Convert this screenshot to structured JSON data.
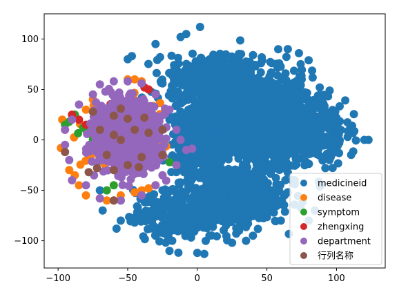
{
  "chart_data": {
    "type": "scatter",
    "title": "",
    "xlabel": "",
    "ylabel": "",
    "xlim": [
      -110,
      135
    ],
    "ylim": [
      -127,
      125
    ],
    "xticks": [
      -100,
      -50,
      0,
      50,
      100
    ],
    "yticks": [
      -100,
      -50,
      0,
      50,
      100
    ],
    "xtick_labels": [
      "−100",
      "−50",
      "0",
      "50",
      "100"
    ],
    "ytick_labels": [
      "−100",
      "−50",
      "0",
      "50",
      "100"
    ],
    "grid": false,
    "legend_position": "lower-right",
    "series": [
      {
        "name": "medicineid",
        "color": "#1f77b4",
        "clusters": [
          {
            "cx": 40,
            "cy": 20,
            "sx": 35,
            "sy": 40,
            "n": 1400
          },
          {
            "cx": 10,
            "cy": 60,
            "sx": 25,
            "sy": 20,
            "n": 400
          },
          {
            "cx": 25,
            "cy": -55,
            "sx": 30,
            "sy": 25,
            "n": 450
          },
          {
            "cx": -15,
            "cy": -75,
            "sx": 25,
            "sy": 20,
            "n": 250
          },
          {
            "cx": 80,
            "cy": 10,
            "sx": 22,
            "sy": 30,
            "n": 260
          },
          {
            "cx": 0,
            "cy": 0,
            "sx": 15,
            "sy": 30,
            "n": 300
          }
        ],
        "points": [
          [
            2,
            112
          ],
          [
            -8,
            105
          ],
          [
            -12,
            102
          ],
          [
            -30,
            95
          ],
          [
            -47,
            83
          ],
          [
            -50,
            80
          ],
          [
            65,
            90
          ],
          [
            73,
            86
          ],
          [
            80,
            79
          ],
          [
            -25,
            56
          ],
          [
            -70,
            -50
          ],
          [
            -55,
            -60
          ],
          [
            -68,
            -70
          ],
          [
            -55,
            -80
          ],
          [
            -58,
            -88
          ],
          [
            -45,
            -82
          ],
          [
            -40,
            -75
          ],
          [
            -20,
            -110
          ],
          [
            0,
            -112
          ],
          [
            5,
            -113
          ],
          [
            -30,
            -95
          ],
          [
            -18,
            -100
          ],
          [
            25,
            -102
          ],
          [
            30,
            -90
          ],
          [
            100,
            0
          ],
          [
            108,
            3
          ],
          [
            120,
            0
          ],
          [
            123,
            0
          ],
          [
            110,
            12
          ],
          [
            100,
            22
          ],
          [
            95,
            -20
          ],
          [
            92,
            -28
          ],
          [
            88,
            23
          ],
          [
            85,
            36
          ],
          [
            88,
            52
          ],
          [
            75,
            60
          ],
          [
            60,
            -20
          ],
          [
            70,
            -40
          ],
          [
            60,
            -60
          ],
          [
            55,
            -72
          ],
          [
            48,
            -73
          ],
          [
            80,
            -80
          ],
          [
            40,
            -95
          ],
          [
            35,
            -100
          ],
          [
            60,
            -80
          ],
          [
            -10,
            -20
          ],
          [
            -20,
            20
          ],
          [
            -25,
            -50
          ]
        ]
      },
      {
        "name": "disease",
        "color": "#ff7f0e",
        "clusters": [
          {
            "cx": -55,
            "cy": 5,
            "sx": 20,
            "sy": 25,
            "n": 120
          }
        ],
        "points": [
          [
            -97,
            20
          ],
          [
            -95,
            10
          ],
          [
            -98,
            -8
          ],
          [
            -92,
            -30
          ],
          [
            -88,
            -35
          ],
          [
            -85,
            -45
          ],
          [
            -80,
            -55
          ],
          [
            -70,
            -58
          ],
          [
            -65,
            -60
          ],
          [
            -60,
            -60
          ],
          [
            -55,
            -55
          ],
          [
            -45,
            -52
          ],
          [
            -40,
            -50
          ],
          [
            -35,
            -48
          ],
          [
            -30,
            -45
          ],
          [
            -50,
            60
          ],
          [
            -45,
            60
          ],
          [
            -40,
            58
          ],
          [
            -75,
            40
          ],
          [
            -80,
            30
          ]
        ]
      },
      {
        "name": "symptom",
        "color": "#2ca02c",
        "clusters": [
          {
            "cx": -55,
            "cy": 0,
            "sx": 22,
            "sy": 25,
            "n": 40
          }
        ],
        "points": [
          [
            -95,
            15
          ],
          [
            -92,
            18
          ],
          [
            -88,
            25
          ],
          [
            -20,
            -22
          ],
          [
            -15,
            -25
          ],
          [
            -65,
            -50
          ],
          [
            -60,
            -45
          ],
          [
            -75,
            0
          ],
          [
            -80,
            10
          ]
        ]
      },
      {
        "name": "zhengxing",
        "color": "#d62728",
        "clusters": [
          {
            "cx": -55,
            "cy": 15,
            "sx": 18,
            "sy": 20,
            "n": 20
          }
        ],
        "points": [
          [
            -38,
            52
          ],
          [
            -35,
            50
          ],
          [
            -90,
            25
          ],
          [
            -85,
            20
          ],
          [
            -80,
            15
          ]
        ]
      },
      {
        "name": "department",
        "color": "#9467bd",
        "clusters": [
          {
            "cx": -50,
            "cy": 5,
            "sx": 18,
            "sy": 25,
            "n": 1300
          }
        ],
        "points": [
          [
            -70,
            55
          ],
          [
            -60,
            58
          ],
          [
            -50,
            58
          ],
          [
            -40,
            56
          ],
          [
            -30,
            45
          ],
          [
            -20,
            30
          ],
          [
            -15,
            10
          ],
          [
            -12,
            0
          ],
          [
            -8,
            -10
          ],
          [
            -15,
            -25
          ],
          [
            -25,
            -35
          ],
          [
            -30,
            -45
          ],
          [
            -40,
            -55
          ],
          [
            -55,
            -60
          ],
          [
            -70,
            -58
          ],
          [
            -80,
            -45
          ],
          [
            -90,
            -40
          ],
          [
            -92,
            -20
          ],
          [
            -95,
            -5
          ],
          [
            -95,
            10
          ],
          [
            -90,
            20
          ],
          [
            -85,
            35
          ],
          [
            -75,
            45
          ]
        ]
      },
      {
        "name": "行列名称",
        "color": "#8c564b",
        "clusters": [],
        "points": [
          [
            -55,
            31
          ],
          [
            -60,
            24
          ],
          [
            -50,
            21
          ],
          [
            -75,
            28
          ],
          [
            -38,
            22
          ],
          [
            -70,
            10
          ],
          [
            -45,
            10
          ],
          [
            -60,
            5
          ],
          [
            -35,
            7
          ],
          [
            -55,
            0
          ],
          [
            -65,
            -15
          ],
          [
            -40,
            -17
          ],
          [
            -60,
            -30
          ],
          [
            -50,
            -25
          ],
          [
            -42,
            -27
          ],
          [
            -78,
            -32
          ],
          [
            -72,
            -28
          ],
          [
            -25,
            -15
          ],
          [
            -25,
            10
          ],
          [
            -95,
            -12
          ],
          [
            -60,
            -60
          ]
        ]
      }
    ]
  }
}
